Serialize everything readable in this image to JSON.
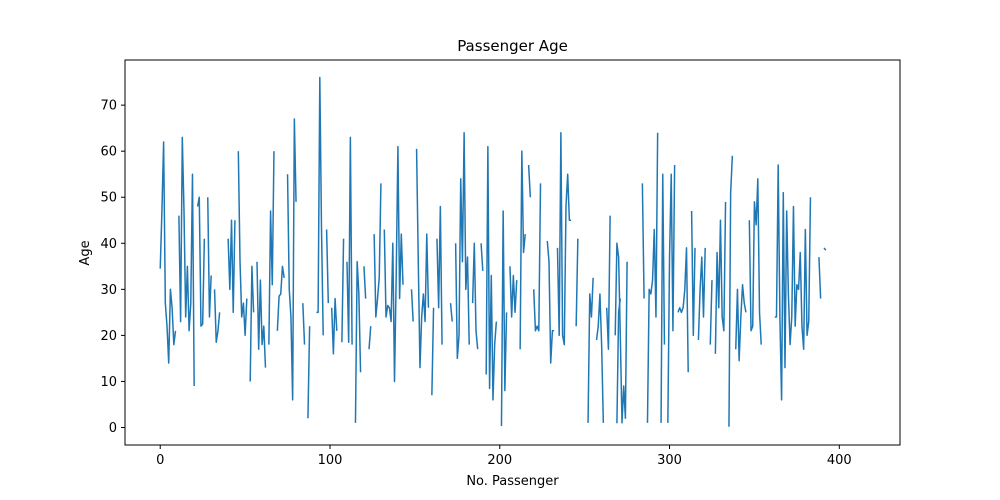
{
  "chart_data": {
    "type": "line",
    "title": "Passenger Age",
    "xlabel": "No. Passenger",
    "ylabel": "Age",
    "xlim": [
      -20.75,
      435.75
    ],
    "ylim": [
      -3.8,
      79.8
    ],
    "xticks": [
      0,
      100,
      200,
      300,
      400
    ],
    "yticks": [
      0,
      10,
      20,
      30,
      40,
      50,
      60,
      70
    ],
    "grid": false,
    "legend": "none",
    "series": [
      {
        "color": "#1f77b4",
        "values": [
          34.5,
          47,
          62,
          27,
          22,
          14,
          30,
          26,
          18,
          21,
          null,
          46,
          23,
          63,
          47,
          24,
          35,
          21,
          27,
          55,
          9,
          null,
          48,
          50,
          22,
          22.5,
          41,
          null,
          50,
          24,
          33,
          null,
          30,
          18.5,
          21,
          25,
          null,
          null,
          39,
          null,
          41,
          30,
          45,
          25,
          45,
          null,
          60,
          36,
          24,
          27,
          20,
          28,
          null,
          10,
          35,
          25,
          null,
          36,
          17,
          32,
          18,
          22,
          13,
          null,
          18,
          47,
          31,
          60,
          null,
          21,
          28.5,
          29,
          35,
          32.5,
          null,
          55,
          30,
          24,
          6,
          67,
          49,
          null,
          null,
          null,
          27,
          18,
          null,
          2,
          22,
          null,
          null,
          null,
          25,
          25,
          76,
          43,
          20,
          null,
          43,
          27,
          null,
          26,
          16,
          28,
          21,
          null,
          null,
          18.5,
          41,
          null,
          36,
          18.5,
          63,
          18,
          null,
          1,
          36,
          29,
          12,
          null,
          35,
          28,
          null,
          17,
          22,
          null,
          42,
          24,
          28,
          32.5,
          53,
          null,
          43,
          24,
          26.5,
          26,
          23,
          40,
          10,
          33,
          61,
          28,
          42,
          31,
          null,
          null,
          22,
          null,
          30,
          23,
          null,
          60.5,
          36,
          13,
          24,
          29,
          23,
          42,
          26,
          null,
          7,
          26,
          null,
          41,
          26,
          48,
          18,
          null,
          null,
          22,
          null,
          27,
          23,
          null,
          40,
          15,
          20,
          54,
          36,
          64,
          30,
          37,
          18,
          null,
          27,
          40,
          21,
          17,
          null,
          40,
          34,
          null,
          11.5,
          61,
          8.5,
          33,
          6,
          18,
          23,
          null,
          null,
          0.33,
          47,
          8,
          25,
          null,
          35,
          24,
          33,
          25,
          32,
          null,
          17,
          60,
          38,
          42,
          null,
          57,
          50,
          null,
          30,
          21,
          22,
          21,
          53,
          null,
          23,
          null,
          40.5,
          36,
          14,
          21,
          21,
          null,
          39,
          20,
          64,
          20,
          18,
          48,
          55,
          45,
          45,
          null,
          null,
          22,
          41,
          null,
          29,
          null,
          null,
          null,
          null,
          null,
          null,
          null,
          null,
          null,
          null,
          null,
          null,
          null,
          null,
          null,
          null,
          null,
          null,
          null,
          null,
          0.92,
          25,
          28,
          null,
          null,
          null,
          null,
          null,
          null,
          null,
          null,
          null,
          null,
          null,
          null,
          null,
          null,
          null,
          null,
          null,
          null,
          null,
          null,
          null,
          null,
          null,
          null,
          null,
          null,
          null,
          null,
          null,
          null,
          null,
          null,
          null,
          null,
          null,
          null,
          null,
          null,
          null,
          null,
          null,
          null,
          null,
          null,
          null,
          null,
          null,
          null,
          null,
          null,
          null,
          null,
          null,
          null,
          null,
          null,
          null,
          null,
          null,
          null,
          null,
          null,
          null,
          null,
          null,
          null,
          null,
          null,
          null,
          null,
          null,
          null,
          null,
          null,
          null,
          null,
          null,
          null,
          null,
          null,
          null,
          null,
          null,
          null,
          null,
          null,
          null,
          null,
          null,
          null,
          null,
          null,
          null,
          null,
          null,
          null,
          null,
          null,
          null,
          null,
          null,
          null,
          null,
          null,
          null,
          null,
          null,
          null,
          null,
          null,
          null,
          null,
          null,
          null,
          null,
          null,
          null,
          null,
          null,
          null,
          null,
          null,
          null,
          null,
          null,
          null,
          null,
          null,
          null,
          null,
          null,
          null,
          null,
          null,
          null,
          null,
          null,
          null,
          null,
          null,
          null,
          null,
          null,
          null,
          null,
          null,
          null,
          null,
          null,
          null,
          null,
          null,
          null,
          null,
          null,
          null,
          null,
          null,
          null,
          null,
          null,
          null,
          null,
          null,
          null,
          null,
          null,
          null,
          null,
          null,
          null,
          null
        ]
      },
      {
        "color": "#1f77b4",
        "start": 252,
        "values": [
          1,
          29,
          24,
          32.5,
          null,
          19,
          22,
          29,
          18,
          1,
          null,
          26,
          17,
          46,
          null,
          null,
          20,
          40,
          37,
          20,
          1,
          9,
          2,
          36,
          null,
          null,
          null,
          null,
          null,
          null,
          null,
          null,
          53,
          28,
          null,
          1,
          30,
          29,
          32,
          43,
          24,
          64,
          null,
          1,
          55,
          18,
          null,
          1,
          37,
          55,
          21,
          57,
          null,
          25,
          26,
          25,
          26,
          30,
          39,
          12,
          null,
          47,
          20,
          39,
          null,
          19,
          30,
          37,
          24,
          39,
          null,
          null,
          18,
          32,
          null,
          16,
          38,
          26,
          45,
          24,
          21,
          49,
          null,
          0.17,
          51,
          59,
          null,
          17,
          30,
          14.5,
          24,
          31,
          27,
          25,
          null,
          45,
          21,
          22,
          49,
          44,
          54,
          25,
          18,
          null,
          5,
          null,
          null,
          null,
          null,
          null,
          24,
          24,
          57,
          24,
          6,
          51,
          13,
          47,
          29,
          18,
          24,
          48,
          22,
          31,
          30,
          38,
          22,
          17,
          43,
          20,
          23,
          50,
          null,
          null,
          null,
          null,
          37,
          28,
          null,
          39,
          38.5
        ]
      }
    ]
  }
}
